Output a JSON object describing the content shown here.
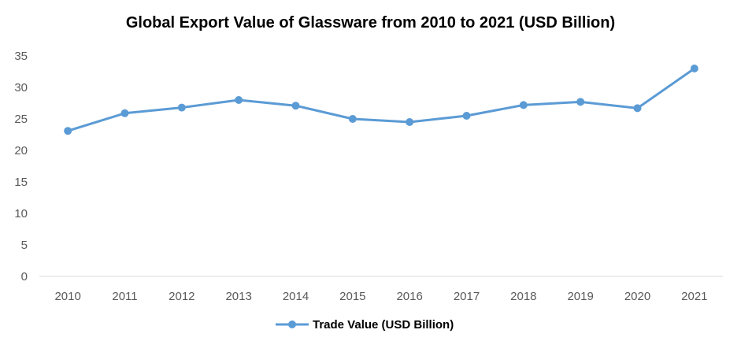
{
  "chart_data": {
    "type": "line",
    "title": "Global Export Value of Glassware from 2010 to 2021 (USD Billion)",
    "categories": [
      "2010",
      "2011",
      "2012",
      "2013",
      "2014",
      "2015",
      "2016",
      "2017",
      "2018",
      "2019",
      "2020",
      "2021"
    ],
    "series": [
      {
        "name": "Trade Value (USD Billion)",
        "values": [
          23.1,
          25.9,
          26.8,
          28.0,
          27.1,
          25.0,
          24.5,
          25.5,
          27.2,
          27.7,
          26.7,
          33.0
        ],
        "color": "#5B9BD5"
      }
    ],
    "ylim": [
      0,
      35
    ],
    "yticks": [
      "0",
      "5",
      "10",
      "15",
      "20",
      "25",
      "30",
      "35"
    ],
    "grid": false,
    "legend": "bottom-center"
  }
}
